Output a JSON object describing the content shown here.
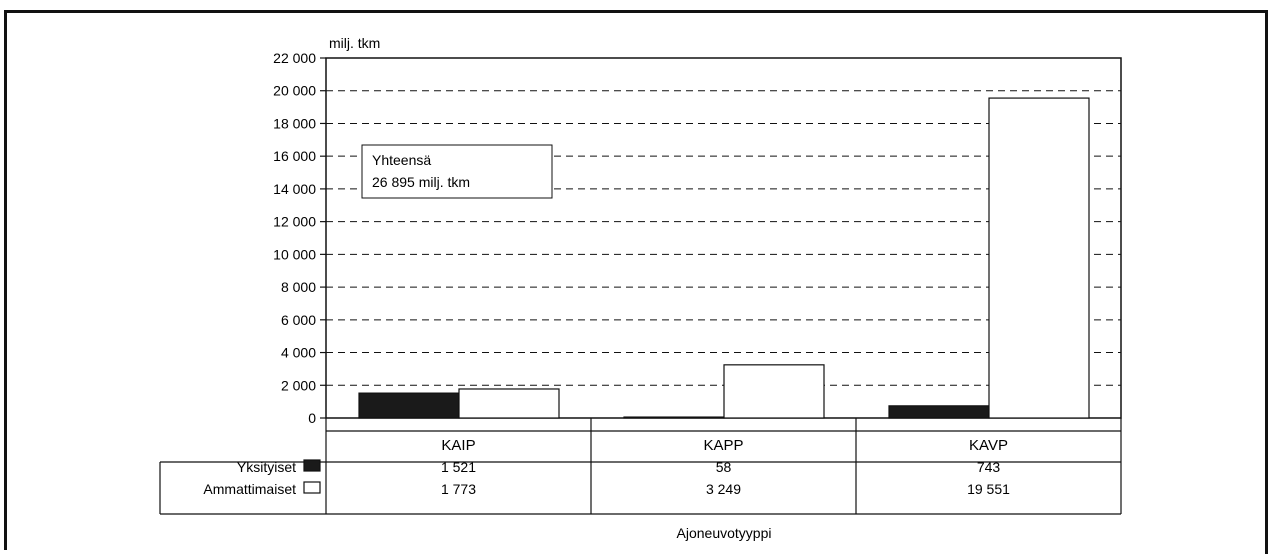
{
  "chart_data": {
    "type": "bar",
    "unit_label": "milj. tkm",
    "xlabel": "Ajoneuvotyyppi",
    "ylim": [
      0,
      22000
    ],
    "yticks": [
      "22 000",
      "20 000",
      "18 000",
      "16 000",
      "14 000",
      "12 000",
      "10 000",
      "8 000",
      "6 000",
      "4 000",
      "2 000",
      "0"
    ],
    "ytick_values": [
      22000,
      20000,
      18000,
      16000,
      14000,
      12000,
      10000,
      8000,
      6000,
      4000,
      2000,
      0
    ],
    "categories": [
      "KAIP",
      "KAPP",
      "KAVP"
    ],
    "series": [
      {
        "name": "Yksityiset",
        "values": [
          1521,
          58,
          743
        ],
        "labels": [
          "1 521",
          "58",
          "743"
        ],
        "color": "#1a1a1a"
      },
      {
        "name": "Ammattimaiset",
        "values": [
          1773,
          3249,
          19551
        ],
        "labels": [
          "1 773",
          "3 249",
          "19 551"
        ],
        "color": "#ffffff"
      }
    ],
    "annotation": {
      "line1": "Yhteensä",
      "line2": "26 895 milj. tkm"
    },
    "grid": "dashed horizontal",
    "legend": "table rows below chart"
  }
}
